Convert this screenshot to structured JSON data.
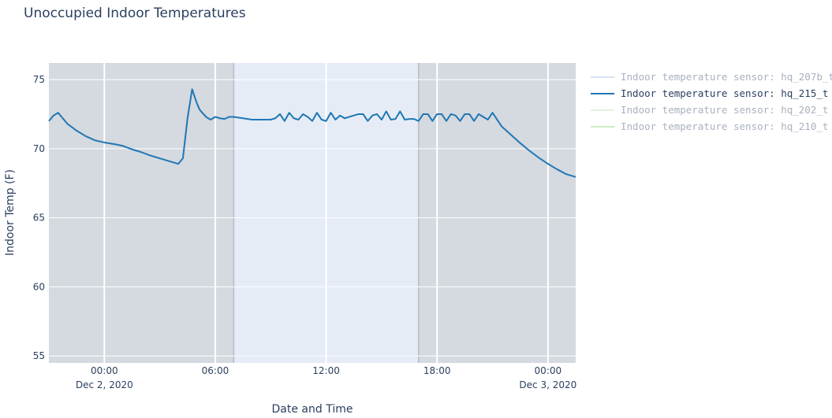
{
  "chart_data": {
    "type": "line",
    "title": "Unoccupied Indoor Temperatures",
    "xlabel": "Date and Time",
    "ylabel": "Indoor Temp (F)",
    "xlim": [
      "2020-12-01 21:00",
      "2020-12-03 01:30"
    ],
    "ylim": [
      54.5,
      76.2
    ],
    "x_ticks": [
      {
        "t": "2020-12-02 00:00",
        "label": "00:00",
        "sublabel": "Dec 2, 2020"
      },
      {
        "t": "2020-12-02 06:00",
        "label": "06:00",
        "sublabel": ""
      },
      {
        "t": "2020-12-02 12:00",
        "label": "12:00",
        "sublabel": ""
      },
      {
        "t": "2020-12-02 18:00",
        "label": "18:00",
        "sublabel": ""
      },
      {
        "t": "2020-12-03 00:00",
        "label": "00:00",
        "sublabel": "Dec 3, 2020"
      }
    ],
    "y_ticks": [
      55,
      60,
      65,
      70,
      75
    ],
    "grid": true,
    "legend_position": "right",
    "shaded_regions": [
      {
        "start": "2020-12-01 21:00",
        "end": "2020-12-02 07:00",
        "fill": "#d5d9e0"
      },
      {
        "start": "2020-12-02 07:00",
        "end": "2020-12-02 17:00",
        "fill": "#e5ecf6"
      },
      {
        "start": "2020-12-02 17:00",
        "end": "2020-12-03 01:30",
        "fill": "#d5d9e0"
      }
    ],
    "region_borders": [
      "2020-12-02 07:00",
      "2020-12-02 17:00"
    ],
    "series": [
      {
        "name": "Indoor temperature sensor: hq_207b_t",
        "color": "#aec7e8",
        "visible": false,
        "x": [],
        "y": []
      },
      {
        "name": "Indoor temperature sensor: hq_215_t",
        "color": "#1f77b4",
        "visible": true,
        "x": [
          "2020-12-01 21:00",
          "2020-12-01 21:15",
          "2020-12-01 21:30",
          "2020-12-01 22:00",
          "2020-12-01 22:30",
          "2020-12-01 23:00",
          "2020-12-01 23:30",
          "2020-12-02 00:00",
          "2020-12-02 00:40",
          "2020-12-02 01:00",
          "2020-12-02 01:30",
          "2020-12-02 02:00",
          "2020-12-02 02:30",
          "2020-12-02 03:00",
          "2020-12-02 03:30",
          "2020-12-02 04:00",
          "2020-12-02 04:15",
          "2020-12-02 04:30",
          "2020-12-02 04:45",
          "2020-12-02 05:00",
          "2020-12-02 05:10",
          "2020-12-02 05:30",
          "2020-12-02 05:45",
          "2020-12-02 06:00",
          "2020-12-02 06:15",
          "2020-12-02 06:30",
          "2020-12-02 06:45",
          "2020-12-02 07:00",
          "2020-12-02 07:30",
          "2020-12-02 08:00",
          "2020-12-02 08:30",
          "2020-12-02 09:00",
          "2020-12-02 09:15",
          "2020-12-02 09:30",
          "2020-12-02 09:45",
          "2020-12-02 10:00",
          "2020-12-02 10:15",
          "2020-12-02 10:30",
          "2020-12-02 10:45",
          "2020-12-02 11:00",
          "2020-12-02 11:15",
          "2020-12-02 11:30",
          "2020-12-02 11:45",
          "2020-12-02 12:00",
          "2020-12-02 12:15",
          "2020-12-02 12:30",
          "2020-12-02 12:45",
          "2020-12-02 13:00",
          "2020-12-02 13:15",
          "2020-12-02 13:30",
          "2020-12-02 13:45",
          "2020-12-02 14:00",
          "2020-12-02 14:15",
          "2020-12-02 14:30",
          "2020-12-02 14:45",
          "2020-12-02 15:00",
          "2020-12-02 15:15",
          "2020-12-02 15:30",
          "2020-12-02 15:45",
          "2020-12-02 16:00",
          "2020-12-02 16:15",
          "2020-12-02 16:30",
          "2020-12-02 16:45",
          "2020-12-02 17:00",
          "2020-12-02 17:15",
          "2020-12-02 17:30",
          "2020-12-02 17:45",
          "2020-12-02 18:00",
          "2020-12-02 18:15",
          "2020-12-02 18:30",
          "2020-12-02 18:45",
          "2020-12-02 19:00",
          "2020-12-02 19:15",
          "2020-12-02 19:30",
          "2020-12-02 19:45",
          "2020-12-02 20:00",
          "2020-12-02 20:15",
          "2020-12-02 20:30",
          "2020-12-02 20:45",
          "2020-12-02 21:00",
          "2020-12-02 21:30",
          "2020-12-02 22:00",
          "2020-12-02 22:30",
          "2020-12-02 23:00",
          "2020-12-02 23:30",
          "2020-12-03 00:00",
          "2020-12-03 00:30",
          "2020-12-03 01:00",
          "2020-12-03 01:30"
        ],
        "y": [
          72.0,
          72.4,
          72.6,
          71.8,
          71.3,
          70.9,
          70.6,
          70.45,
          70.3,
          70.2,
          69.95,
          69.75,
          69.5,
          69.3,
          69.1,
          68.9,
          69.3,
          72.2,
          74.3,
          73.3,
          72.8,
          72.3,
          72.1,
          72.3,
          72.2,
          72.15,
          72.3,
          72.3,
          72.2,
          72.1,
          72.1,
          72.1,
          72.2,
          72.5,
          72.0,
          72.6,
          72.2,
          72.1,
          72.5,
          72.3,
          72.0,
          72.6,
          72.1,
          72.0,
          72.6,
          72.1,
          72.4,
          72.2,
          72.3,
          72.4,
          72.5,
          72.5,
          72.0,
          72.4,
          72.5,
          72.1,
          72.7,
          72.1,
          72.15,
          72.7,
          72.1,
          72.15,
          72.15,
          72.0,
          72.5,
          72.5,
          72.0,
          72.5,
          72.5,
          72.0,
          72.5,
          72.4,
          72.0,
          72.5,
          72.5,
          72.0,
          72.5,
          72.3,
          72.1,
          72.6,
          71.6,
          71.0,
          70.4,
          69.85,
          69.35,
          68.9,
          68.5,
          68.15,
          67.95
        ]
      },
      {
        "name": "Indoor temperature sensor: hq_202_t",
        "color": "#c7e9b4",
        "visible": false,
        "x": [],
        "y": []
      },
      {
        "name": "Indoor temperature sensor: hq_210_t",
        "color": "#98df8a",
        "visible": false,
        "x": [],
        "y": []
      }
    ]
  }
}
